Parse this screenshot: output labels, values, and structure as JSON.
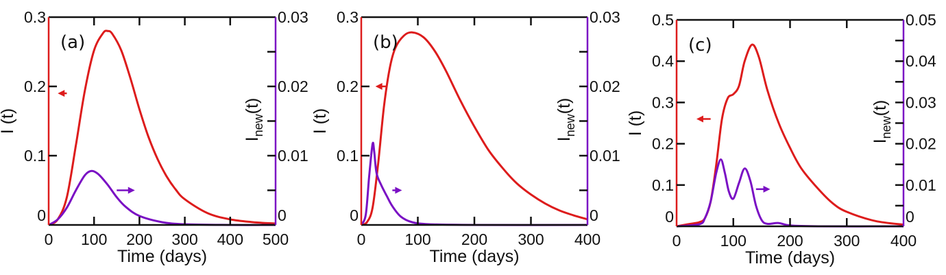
{
  "colors": {
    "I": "#dd1c1c",
    "Inew": "#7a10c4",
    "axis": "#111111"
  },
  "chart_data": [
    {
      "type": "line",
      "panel_label": "(a)",
      "xlabel": "Time (days)",
      "ylabel_left": "I (t)",
      "ylabel_right_main": "I",
      "ylabel_right_sub": "new",
      "ylabel_right_tail": "(t)",
      "xlim": [
        0,
        500
      ],
      "ylim_left": [
        0,
        0.3
      ],
      "ylim_right": [
        0,
        0.03
      ],
      "xticks": [
        "0",
        "100",
        "200",
        "300",
        "400",
        "500"
      ],
      "yticks_left": [
        "0",
        "0.1",
        "0.2",
        "0.3"
      ],
      "yticks_right": [
        "0",
        "0.01",
        "0.02",
        "0.03"
      ],
      "series": [
        {
          "name": "I(t)",
          "axis": "left",
          "x": [
            0,
            20,
            40,
            60,
            80,
            100,
            120,
            130,
            140,
            160,
            180,
            200,
            220,
            240,
            260,
            280,
            300,
            350,
            400,
            450,
            500
          ],
          "y": [
            0,
            0.008,
            0.04,
            0.115,
            0.195,
            0.252,
            0.277,
            0.28,
            0.276,
            0.252,
            0.212,
            0.167,
            0.127,
            0.095,
            0.07,
            0.051,
            0.037,
            0.017,
            0.008,
            0.004,
            0.002
          ]
        },
        {
          "name": "I_new(t)",
          "axis": "right",
          "x": [
            0,
            20,
            40,
            60,
            80,
            95,
            110,
            130,
            150,
            170,
            200,
            250,
            300,
            400,
            500
          ],
          "y": [
            0,
            0.0008,
            0.0025,
            0.005,
            0.0072,
            0.0078,
            0.0073,
            0.0058,
            0.004,
            0.0026,
            0.0013,
            0.0004,
            0.0001,
            0,
            0
          ]
        }
      ],
      "arrows": [
        {
          "series": "I(t)",
          "direction": "left",
          "x": [
            20,
            40
          ],
          "y": 0.19
        },
        {
          "series": "I_new(t)",
          "direction": "right",
          "x": [
            150,
            190
          ],
          "y": 0.005
        }
      ]
    },
    {
      "type": "line",
      "panel_label": "(b)",
      "xlabel": "Time (days)",
      "ylabel_left": "I (t)",
      "ylabel_right_main": "I",
      "ylabel_right_sub": "new",
      "ylabel_right_tail": "(t)",
      "xlim": [
        0,
        400
      ],
      "ylim_left": [
        0,
        0.3
      ],
      "ylim_right": [
        0,
        0.03
      ],
      "xticks": [
        "0",
        "100",
        "200",
        "300",
        "400"
      ],
      "yticks_left": [
        "0",
        "0.1",
        "0.2",
        "0.3"
      ],
      "yticks_right": [
        "0",
        "0.01",
        "0.02",
        "0.03"
      ],
      "series": [
        {
          "name": "I(t)",
          "axis": "left",
          "x": [
            0,
            10,
            20,
            30,
            40,
            50,
            60,
            75,
            90,
            110,
            130,
            150,
            175,
            200,
            225,
            250,
            275,
            300,
            325,
            350,
            375,
            400
          ],
          "y": [
            0,
            0.004,
            0.025,
            0.09,
            0.17,
            0.225,
            0.255,
            0.273,
            0.278,
            0.271,
            0.251,
            0.222,
            0.18,
            0.142,
            0.108,
            0.082,
            0.06,
            0.044,
            0.031,
            0.021,
            0.014,
            0.008
          ]
        },
        {
          "name": "I_new(t)",
          "axis": "right",
          "x": [
            0,
            8,
            14,
            20,
            23,
            27,
            35,
            45,
            55,
            70,
            90,
            120,
            200,
            400
          ],
          "y": [
            0,
            0.0015,
            0.007,
            0.0117,
            0.0105,
            0.0075,
            0.0058,
            0.0042,
            0.0027,
            0.0012,
            0.0004,
            0.0001,
            0,
            0
          ]
        }
      ],
      "arrows": [
        {
          "series": "I(t)",
          "direction": "left",
          "x": [
            25,
            45
          ],
          "y": 0.2
        },
        {
          "series": "I_new(t)",
          "direction": "right",
          "x": [
            55,
            72
          ],
          "y": 0.005
        }
      ]
    },
    {
      "type": "line",
      "panel_label": "(c)",
      "xlabel": "Time (days)",
      "ylabel_left": "I (t)",
      "ylabel_right_main": "I",
      "ylabel_right_sub": "new",
      "ylabel_right_tail": "(t)",
      "xlim": [
        0,
        400
      ],
      "ylim_left": [
        0,
        0.5
      ],
      "ylim_right": [
        0,
        0.05
      ],
      "xticks": [
        "0",
        "100",
        "200",
        "300",
        "400"
      ],
      "yticks_left": [
        "0",
        "0.1",
        "0.2",
        "0.3",
        "0.4",
        "0.5"
      ],
      "yticks_right": [
        "0",
        "0.01",
        "0.02",
        "0.03",
        "0.04",
        "0.05"
      ],
      "series": [
        {
          "name": "I(t)",
          "axis": "left",
          "x": [
            0,
            20,
            40,
            50,
            60,
            70,
            80,
            90,
            100,
            110,
            120,
            133,
            145,
            160,
            180,
            200,
            220,
            250,
            275,
            300,
            350,
            400
          ],
          "y": [
            0,
            0.005,
            0.01,
            0.02,
            0.06,
            0.15,
            0.26,
            0.31,
            0.32,
            0.34,
            0.4,
            0.44,
            0.41,
            0.33,
            0.25,
            0.19,
            0.14,
            0.09,
            0.056,
            0.035,
            0.013,
            0.004
          ]
        },
        {
          "name": "I_new(t)",
          "axis": "right",
          "x": [
            0,
            40,
            50,
            60,
            70,
            78,
            85,
            92,
            100,
            110,
            120,
            130,
            140,
            150,
            160,
            180,
            200,
            250,
            400
          ],
          "y": [
            0,
            0.0005,
            0.002,
            0.006,
            0.013,
            0.0162,
            0.013,
            0.0085,
            0.0067,
            0.0105,
            0.014,
            0.011,
            0.005,
            0.0015,
            0.0006,
            0.0008,
            0.0002,
            0,
            0
          ]
        }
      ],
      "arrows": [
        {
          "series": "I(t)",
          "direction": "left",
          "x": [
            35,
            60
          ],
          "y": 0.26
        },
        {
          "series": "I_new(t)",
          "direction": "right",
          "x": [
            140,
            165
          ],
          "y": 0.009
        }
      ]
    }
  ]
}
